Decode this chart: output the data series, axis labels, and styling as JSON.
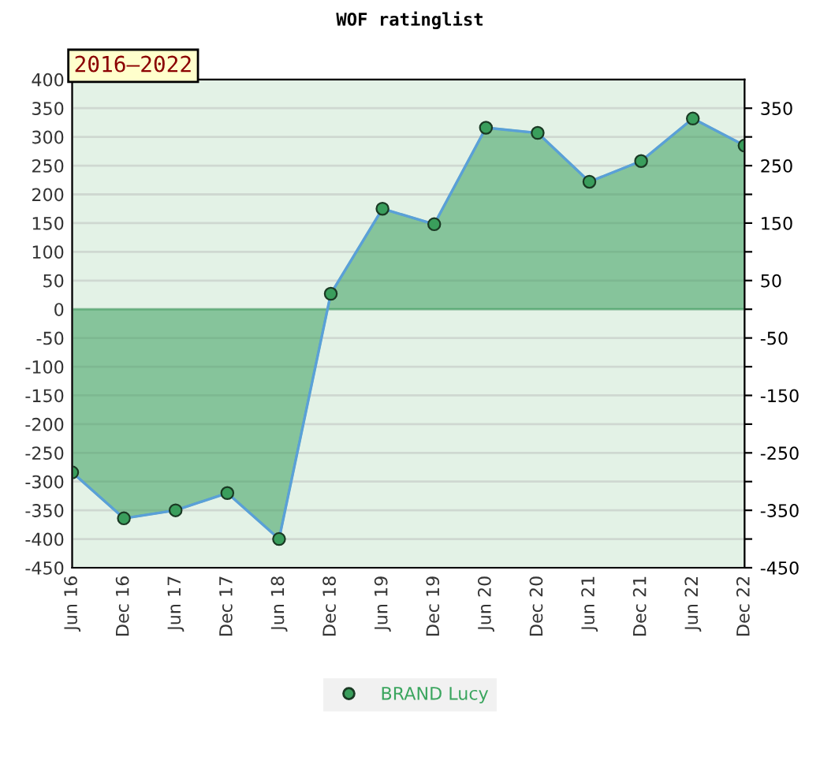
{
  "chart_data": {
    "type": "area",
    "title": "WOF ratinglist",
    "annotations": [
      "2016–2022"
    ],
    "categories": [
      "Jun 16",
      "Dec 16",
      "Jun 17",
      "Dec 17",
      "Jun 18",
      "Dec 18",
      "Jun 19",
      "Dec 19",
      "Jun 20",
      "Dec 20",
      "Jun 21",
      "Dec 21",
      "Jun 22",
      "Dec 22"
    ],
    "series": [
      {
        "name": "BRAND Lucy",
        "color": "#3a9e5c",
        "values": [
          -284,
          -364,
          -350,
          -320,
          -400,
          27,
          175,
          148,
          316,
          307,
          222,
          258,
          332,
          285
        ]
      }
    ],
    "ylim": [
      -450,
      400
    ],
    "yticks": [
      -450,
      -400,
      -350,
      -300,
      -250,
      -200,
      -150,
      -100,
      -50,
      0,
      50,
      100,
      150,
      200,
      250,
      300,
      350,
      400
    ],
    "y2lim": [
      -450,
      400
    ],
    "y2ticks": [
      -450,
      {
        "value": -400,
        "label": null
      },
      -350,
      {
        "value": -300,
        "label": null
      },
      -250,
      {
        "value": -200,
        "label": null
      },
      -150,
      {
        "value": -100,
        "label": null
      },
      -50,
      {
        "value": 0,
        "label": null
      },
      50,
      {
        "value": 100,
        "label": null
      },
      150,
      {
        "value": 200,
        "label": null
      },
      250,
      {
        "value": 300,
        "label": null
      },
      350
    ],
    "grid": "y",
    "legend": "bottom",
    "marker": "circle",
    "line_style": "solid"
  }
}
